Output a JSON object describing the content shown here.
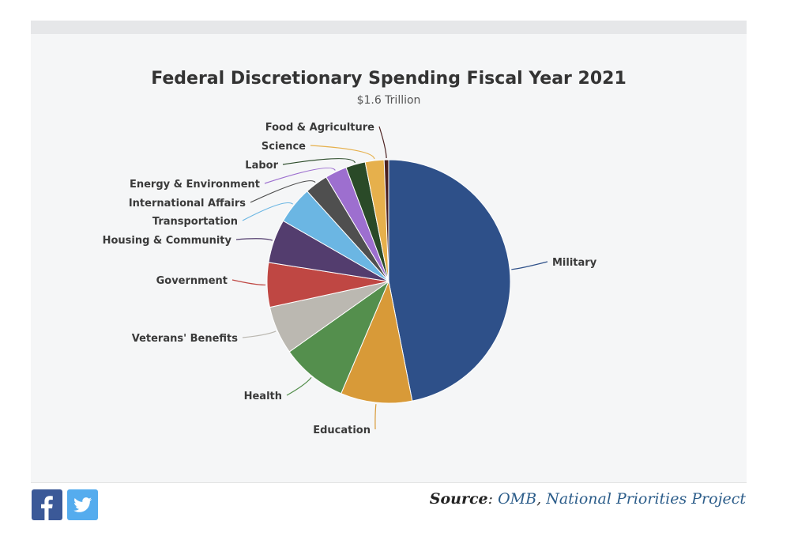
{
  "chart_data": {
    "type": "pie",
    "title": "Federal Discretionary Spending Fiscal Year 2021",
    "subtitle": "$1.6 Trillion",
    "unit": "percent of total",
    "slices": [
      {
        "label": "Military",
        "value": 46.9,
        "color": "#2e5089"
      },
      {
        "label": "Education",
        "value": 9.5,
        "color": "#d89a38"
      },
      {
        "label": "Health",
        "value": 8.8,
        "color": "#548f4d"
      },
      {
        "label": "Veterans' Benefits",
        "value": 6.4,
        "color": "#bbb8b1"
      },
      {
        "label": "Government",
        "value": 5.9,
        "color": "#bf4743"
      },
      {
        "label": "Housing & Community",
        "value": 5.8,
        "color": "#533d6e"
      },
      {
        "label": "Transportation",
        "value": 5.0,
        "color": "#6bb6e3"
      },
      {
        "label": "International Affairs",
        "value": 3.1,
        "color": "#4f4f4f"
      },
      {
        "label": "Energy & Environment",
        "value": 2.9,
        "color": "#9d6fcf"
      },
      {
        "label": "Labor",
        "value": 2.6,
        "color": "#2a4a28"
      },
      {
        "label": "Science",
        "value": 2.5,
        "color": "#e6b04c"
      },
      {
        "label": "Food & Agriculture",
        "value": 0.6,
        "color": "#4a1f1f"
      }
    ]
  },
  "footer": {
    "source_label": "Source",
    "source_sep": ": ",
    "source_link_1": "OMB",
    "source_comma": ", ",
    "source_link_2": "National Priorities Project"
  },
  "share": {
    "facebook_icon": "facebook-icon",
    "twitter_icon": "twitter-icon"
  }
}
